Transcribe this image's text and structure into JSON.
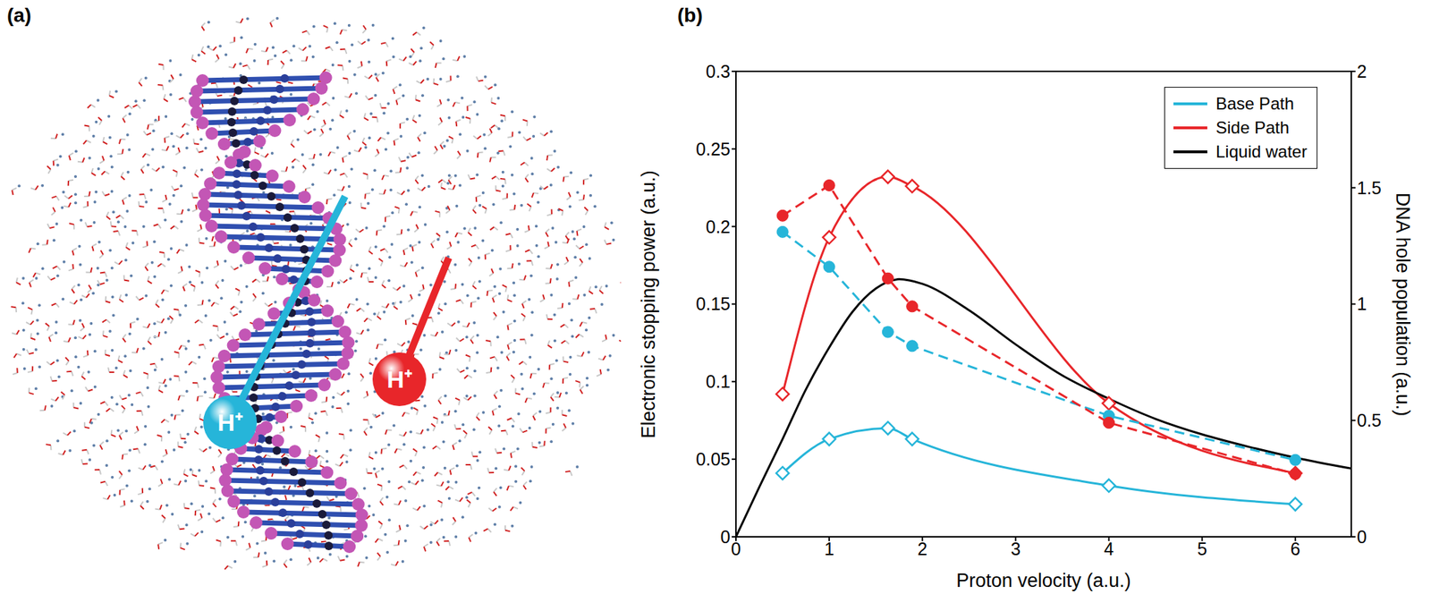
{
  "panel_labels": [
    "(a)",
    "(b)"
  ],
  "illustration": {
    "labels": [
      "H⁺",
      "H⁺"
    ],
    "colors": [
      "#26b5d9",
      "#e8262a"
    ]
  },
  "chart_data": {
    "type": "line",
    "xlabel": "Proton velocity (a.u.)",
    "ylabel": "Electronic stopping power (a.u.)",
    "y2label": "DNA hole population (a.u.)",
    "xlim": [
      0,
      6.6
    ],
    "xticks": [
      0,
      1,
      2,
      3,
      4,
      5,
      6
    ],
    "ylim": [
      0,
      0.3
    ],
    "yticks": [
      0,
      0.05,
      0.1,
      0.15,
      0.2,
      0.25,
      0.3
    ],
    "y2lim": [
      0,
      2
    ],
    "y2ticks": [
      0,
      0.5,
      1,
      1.5,
      2
    ],
    "legend": "upper right",
    "series": [
      {
        "name": "Base Path",
        "color": "#26b5d9",
        "marker": "open_diamond",
        "line_style": "solid",
        "x": [
          0.5,
          1,
          1.63,
          1.89,
          4,
          6
        ],
        "values": [
          0.041,
          0.063,
          0.07,
          0.063,
          0.033,
          0.021
        ]
      },
      {
        "name": "Side Path",
        "color": "#e8262a",
        "marker": "open_diamond",
        "line_style": "solid",
        "x": [
          0.5,
          1,
          1.63,
          1.89,
          4,
          6
        ],
        "values": [
          0.092,
          0.193,
          0.232,
          0.226,
          0.086,
          0.041
        ]
      },
      {
        "name": "Liquid water",
        "color": "#000000",
        "marker": "none",
        "line_style": "solid",
        "x": [
          0,
          0.25,
          0.5,
          0.75,
          1,
          1.25,
          1.5,
          1.75,
          2,
          2.5,
          3,
          3.5,
          4,
          4.5,
          5,
          5.5,
          6,
          6.6
        ],
        "values": [
          0,
          0.032,
          0.063,
          0.095,
          0.122,
          0.145,
          0.16,
          0.166,
          0.163,
          0.146,
          0.124,
          0.104,
          0.089,
          0.076,
          0.066,
          0.058,
          0.051,
          0.044
        ]
      },
      {
        "name": "Base Path",
        "color": "#26b5d9",
        "marker": "circle",
        "line_style": "dashed",
        "axis": "y2",
        "x": [
          0.5,
          1,
          1.63,
          1.89,
          4,
          6
        ],
        "values": [
          1.31,
          1.16,
          0.88,
          0.82,
          0.52,
          0.33
        ]
      },
      {
        "name": "Side Path",
        "color": "#e8262a",
        "marker": "circle",
        "line_style": "dashed",
        "axis": "y2",
        "x": [
          0.5,
          1,
          1.63,
          1.89,
          4,
          6
        ],
        "values": [
          1.38,
          1.51,
          1.11,
          0.99,
          0.49,
          0.27
        ]
      }
    ]
  }
}
